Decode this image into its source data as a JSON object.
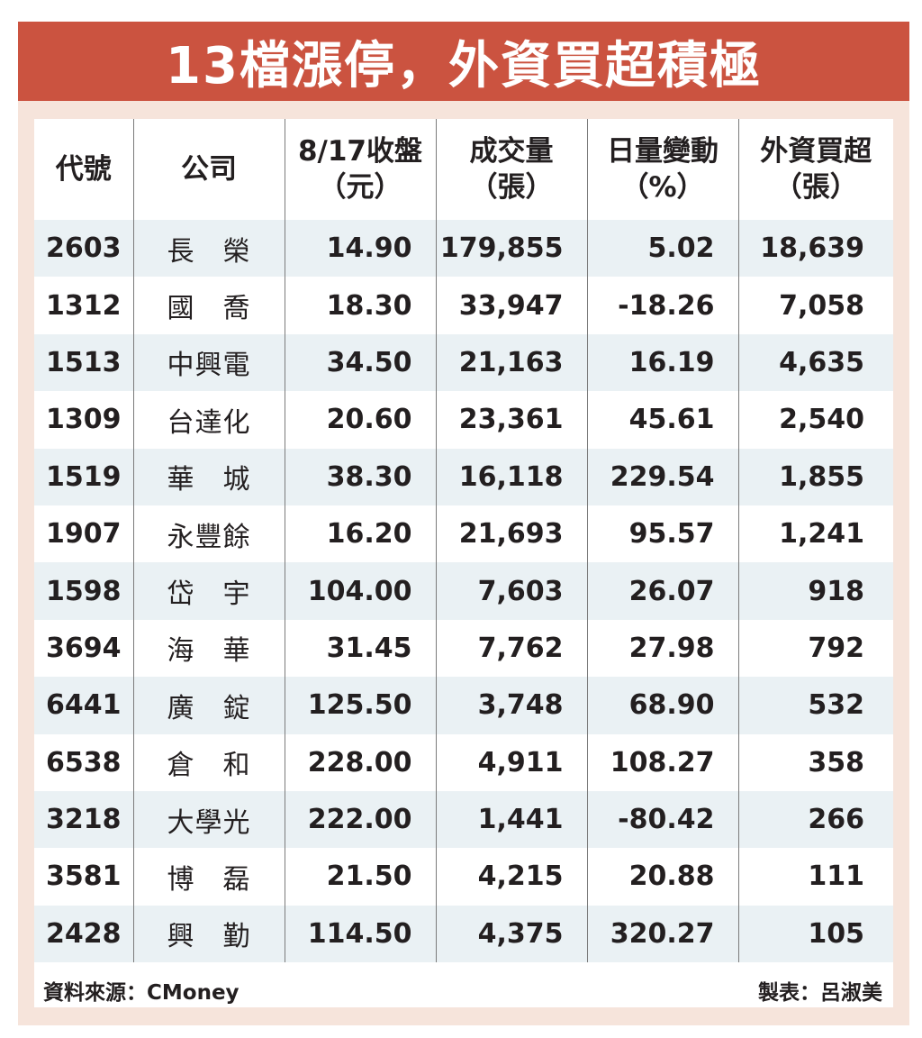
{
  "title": "13檔漲停，外資買超積極",
  "headers": [
    [
      "代號"
    ],
    [
      "公司"
    ],
    [
      "8/17收盤",
      "（元）"
    ],
    [
      "成交量",
      "（張）"
    ],
    [
      "日量變動",
      "（%）"
    ],
    [
      "外資買超",
      "（張）"
    ]
  ],
  "rows": [
    {
      "code": "2603",
      "company": "長　榮",
      "close": "14.90",
      "volume": "179,855",
      "change": "5.02",
      "foreign": "18,639"
    },
    {
      "code": "1312",
      "company": "國　喬",
      "close": "18.30",
      "volume": "33,947",
      "change": "-18.26",
      "foreign": "7,058"
    },
    {
      "code": "1513",
      "company": "中興電",
      "close": "34.50",
      "volume": "21,163",
      "change": "16.19",
      "foreign": "4,635"
    },
    {
      "code": "1309",
      "company": "台達化",
      "close": "20.60",
      "volume": "23,361",
      "change": "45.61",
      "foreign": "2,540"
    },
    {
      "code": "1519",
      "company": "華　城",
      "close": "38.30",
      "volume": "16,118",
      "change": "229.54",
      "foreign": "1,855"
    },
    {
      "code": "1907",
      "company": "永豐餘",
      "close": "16.20",
      "volume": "21,693",
      "change": "95.57",
      "foreign": "1,241"
    },
    {
      "code": "1598",
      "company": "岱　宇",
      "close": "104.00",
      "volume": "7,603",
      "change": "26.07",
      "foreign": "918"
    },
    {
      "code": "3694",
      "company": "海　華",
      "close": "31.45",
      "volume": "7,762",
      "change": "27.98",
      "foreign": "792"
    },
    {
      "code": "6441",
      "company": "廣　錠",
      "close": "125.50",
      "volume": "3,748",
      "change": "68.90",
      "foreign": "532"
    },
    {
      "code": "6538",
      "company": "倉　和",
      "close": "228.00",
      "volume": "4,911",
      "change": "108.27",
      "foreign": "358"
    },
    {
      "code": "3218",
      "company": "大學光",
      "close": "222.00",
      "volume": "1,441",
      "change": "-80.42",
      "foreign": "266"
    },
    {
      "code": "3581",
      "company": "博　磊",
      "close": "21.50",
      "volume": "4,215",
      "change": "20.88",
      "foreign": "111"
    },
    {
      "code": "2428",
      "company": "興　勤",
      "close": "114.50",
      "volume": "4,375",
      "change": "320.27",
      "foreign": "105"
    }
  ],
  "footer": {
    "source": "資料來源：CMoney",
    "maker": "製表：呂淑美"
  },
  "colors": {
    "banner": "#cb5340",
    "frame": "#f6e4db",
    "stripe": "#eaf1f4"
  }
}
